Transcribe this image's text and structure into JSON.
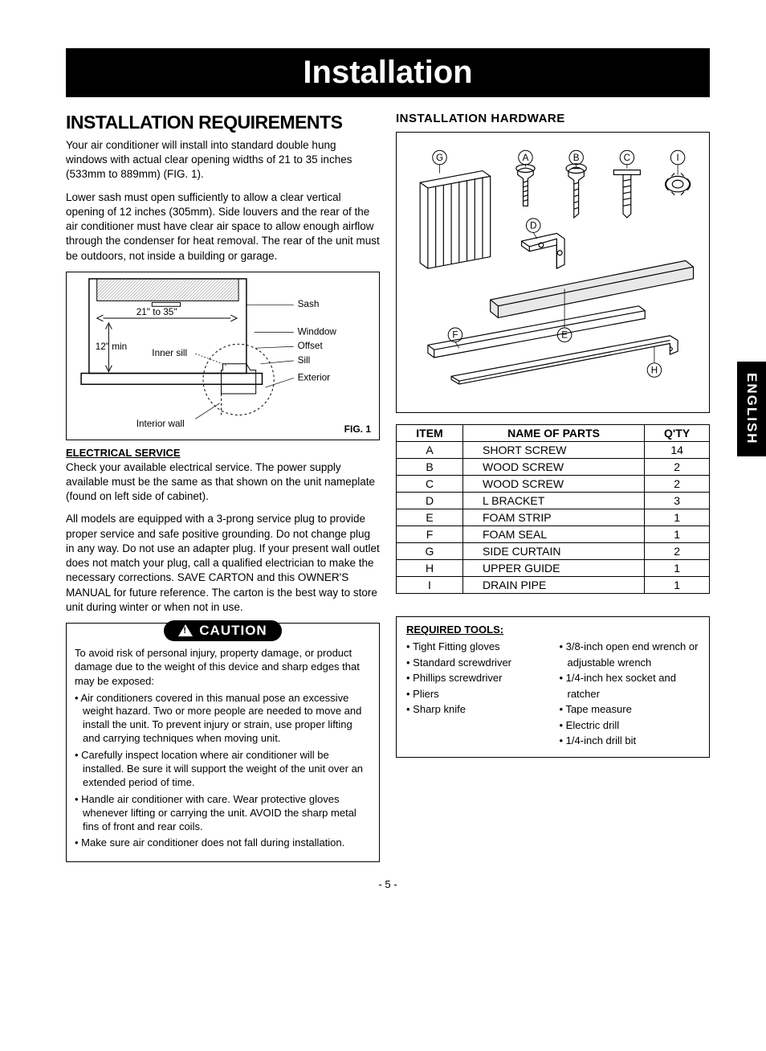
{
  "title": "Installation",
  "lang_tab": "ENGLISH",
  "page_number": "- 5 -",
  "left": {
    "heading": "INSTALLATION REQUIREMENTS",
    "para1": "Your air conditioner will install into standard double hung windows with actual clear opening widths of 21 to 35 inches (533mm to 889mm) (FIG. 1).",
    "para2": "Lower sash must open sufficiently to allow a clear vertical opening of 12 inches (305mm). Side louvers and the rear of the air conditioner must have clear air space to allow enough airflow through the condenser for heat removal. The rear of the unit must be outdoors, not inside a building or garage.",
    "fig1": {
      "caption": "FIG. 1",
      "labels": {
        "sash": "Sash",
        "width": "21\" to 35\"",
        "height": "12\" min",
        "inner_sill": "Inner sill",
        "window": "Winddow",
        "offset": "Offset",
        "sill": "Sill",
        "exterior": "Exterior",
        "interior_wall": "Interior wall"
      }
    },
    "electrical_heading": "ELECTRICAL SERVICE",
    "electrical_p1": "Check your available electrical service. The power supply available must be the same as that shown on the unit nameplate (found on left side of cabinet).",
    "electrical_p2": "All models are equipped with a 3-prong service plug to provide proper service and safe positive grounding. Do not change plug in any way. Do not use an adapter plug. If your present wall outlet does not match your plug, call a qualified electrician to make the necessary corrections. SAVE CARTON and this OWNER'S MANUAL for future reference. The carton is the best way to store unit during winter or when not in use.",
    "caution": {
      "label": "CAUTION",
      "intro": "To avoid risk of personal injury, property damage, or product damage due to the weight of this device and sharp edges that may be exposed:",
      "items": [
        "Air conditioners covered in this manual pose an excessive weight hazard. Two or more people are needed to move and install the unit. To prevent injury or strain, use proper lifting and carrying techniques when moving unit.",
        "Carefully inspect location where air conditioner will be installed. Be sure it will support the weight of the unit over an extended period of time.",
        "Handle air conditioner with care. Wear protective gloves whenever lifting or carrying the unit. AVOID the sharp metal fins of front and rear coils.",
        "Make sure air conditioner does not fall during installation."
      ]
    }
  },
  "right": {
    "heading": "INSTALLATION HARDWARE",
    "hardware_labels": [
      "G",
      "A",
      "B",
      "C",
      "I",
      "D",
      "F",
      "E",
      "H"
    ],
    "table": {
      "headers": [
        "ITEM",
        "NAME OF PARTS",
        "Q'TY"
      ],
      "rows": [
        [
          "A",
          "SHORT SCREW",
          "14"
        ],
        [
          "B",
          "WOOD SCREW",
          "2"
        ],
        [
          "C",
          "WOOD SCREW",
          "2"
        ],
        [
          "D",
          "L BRACKET",
          "3"
        ],
        [
          "E",
          "FOAM STRIP",
          "1"
        ],
        [
          "F",
          "FOAM SEAL",
          "1"
        ],
        [
          "G",
          "SIDE CURTAIN",
          "2"
        ],
        [
          "H",
          "UPPER GUIDE",
          "1"
        ],
        [
          "I",
          "DRAIN PIPE",
          "1"
        ]
      ]
    },
    "tools": {
      "heading": "REQUIRED TOOLS:",
      "col1": [
        "Tight Fitting gloves",
        "Standard screwdriver",
        "Phillips screwdriver",
        "Pliers",
        "Sharp knife"
      ],
      "col2": [
        "3/8-inch open end wrench or adjustable wrench",
        "1/4-inch hex socket and ratcher",
        "Tape measure",
        "Electric drill",
        "1/4-inch drill bit"
      ]
    }
  }
}
